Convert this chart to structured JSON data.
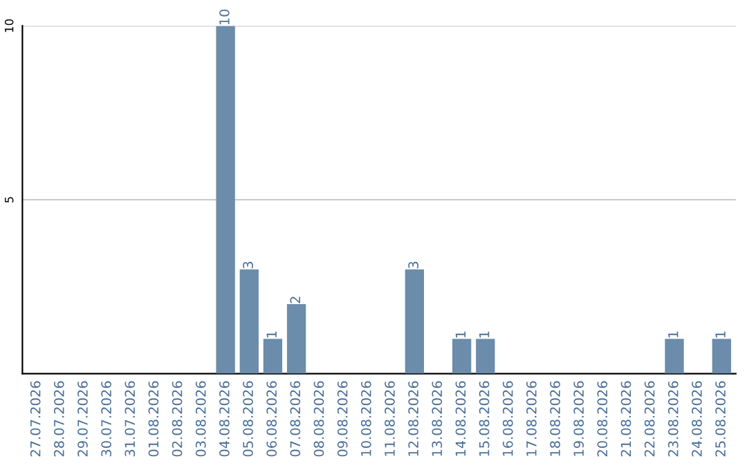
{
  "chart_data": {
    "type": "bar",
    "categories": [
      "27.07.2026",
      "28.07.2026",
      "29.07.2026",
      "30.07.2026",
      "31.07.2026",
      "01.08.2026",
      "02.08.2026",
      "03.08.2026",
      "04.08.2026",
      "05.08.2026",
      "06.08.2026",
      "07.08.2026",
      "08.08.2026",
      "09.08.2026",
      "10.08.2026",
      "11.08.2026",
      "12.08.2026",
      "13.08.2026",
      "14.08.2026",
      "15.08.2026",
      "16.08.2026",
      "17.08.2026",
      "18.08.2026",
      "19.08.2026",
      "20.08.2026",
      "21.08.2026",
      "22.08.2026",
      "23.08.2026",
      "24.08.2026",
      "25.08.2026"
    ],
    "values": [
      0,
      0,
      0,
      0,
      0,
      0,
      0,
      0,
      10,
      3,
      1,
      2,
      0,
      0,
      0,
      0,
      3,
      0,
      1,
      1,
      0,
      0,
      0,
      0,
      0,
      0,
      0,
      1,
      0,
      1
    ],
    "value_labels": [
      null,
      null,
      null,
      null,
      null,
      null,
      null,
      null,
      "10",
      "3",
      "1",
      "2",
      null,
      null,
      null,
      null,
      "3",
      null,
      "1",
      "1",
      null,
      null,
      null,
      null,
      null,
      null,
      null,
      "1",
      null,
      "1"
    ],
    "color": "#6b8caa",
    "ylim": [
      0,
      10
    ],
    "yticks": [
      5,
      10
    ],
    "grid": "y"
  }
}
